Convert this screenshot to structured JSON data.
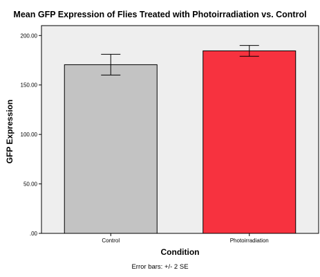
{
  "chart_data": {
    "type": "bar",
    "title": "Mean GFP Expression of Flies Treated with Photoirradiation vs. Control",
    "xlabel": "Condition",
    "ylabel": "GFP Expression",
    "categories": [
      "Control",
      "Photoirradiation"
    ],
    "values": [
      170.5,
      184.5
    ],
    "error_low": [
      160.0,
      179.0
    ],
    "error_high": [
      181.0,
      190.0
    ],
    "bar_colors": [
      "#c3c3c3",
      "#f7323f"
    ],
    "plot_background": "#eeeeee",
    "ylim": [
      0,
      210
    ],
    "yticks": [
      "200.00",
      "150.00",
      "100.00",
      "50.00",
      ".00"
    ],
    "ytick_values": [
      200,
      150,
      100,
      50,
      0
    ],
    "grid": false,
    "footnote": "Error bars: +/- 2 SE"
  }
}
